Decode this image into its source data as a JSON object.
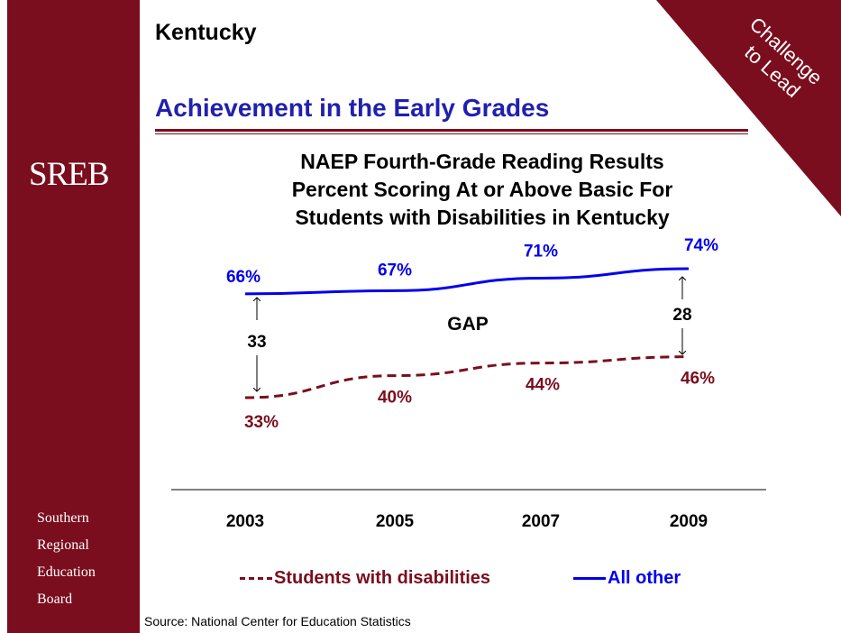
{
  "sidebar": {
    "logo": "SREB",
    "org_lines": [
      "Southern",
      "Regional",
      "Education",
      "Board"
    ]
  },
  "corner_banner": {
    "line1": "Challenge",
    "line2": "to Lead"
  },
  "header": {
    "state": "Kentucky",
    "title": "Achievement in the Early Grades"
  },
  "colors": {
    "maroon": "#7a0e1e",
    "blue": "#0000ee",
    "title_blue": "#2020b0"
  },
  "chart_data": {
    "type": "line",
    "title_lines": [
      "NAEP Fourth-Grade Reading Results",
      "Percent Scoring At or Above Basic For",
      "Students with Disabilities in Kentucky"
    ],
    "categories": [
      "2003",
      "2005",
      "2007",
      "2009"
    ],
    "series": [
      {
        "name": "All other",
        "values": [
          66,
          67,
          71,
          74
        ],
        "labels": [
          "66%",
          "67%",
          "71%",
          "74%"
        ],
        "color": "#0000ee",
        "style": "solid"
      },
      {
        "name": "Students with disabilities",
        "values": [
          33,
          40,
          44,
          46
        ],
        "labels": [
          "33%",
          "40%",
          "44%",
          "46%"
        ],
        "color": "#7a0e1e",
        "style": "dashed"
      }
    ],
    "gap_label": "GAP",
    "gaps": [
      {
        "category": "2003",
        "value": "33"
      },
      {
        "category": "2009",
        "value": "28"
      }
    ],
    "legend_position": "bottom"
  },
  "source": "Source: National Center for Education Statistics"
}
